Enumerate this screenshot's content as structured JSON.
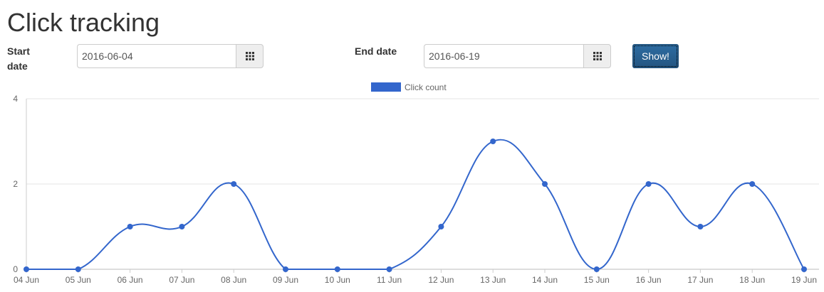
{
  "page": {
    "title": "Click tracking"
  },
  "filters": {
    "start_label": "Start date",
    "start_value": "2016-06-04",
    "end_label": "End date",
    "end_value": "2016-06-19",
    "calendar_icon": "calendar-grid-icon",
    "show_label": "Show!"
  },
  "colors": {
    "series": "#3366cc",
    "button": "#265a88",
    "grid": "#e6e6e6"
  },
  "chart_data": {
    "type": "line",
    "title": "",
    "xlabel": "",
    "ylabel": "",
    "categories": [
      "04 Jun",
      "05 Jun",
      "06 Jun",
      "07 Jun",
      "08 Jun",
      "09 Jun",
      "10 Jun",
      "11 Jun",
      "12 Jun",
      "13 Jun",
      "14 Jun",
      "15 Jun",
      "16 Jun",
      "17 Jun",
      "18 Jun",
      "19 Jun"
    ],
    "series": [
      {
        "name": "Click count",
        "values": [
          0,
          0,
          1,
          1,
          2,
          0,
          0,
          0,
          1,
          3,
          2,
          0,
          2,
          1,
          2,
          0
        ]
      }
    ],
    "ylim": [
      0,
      4
    ],
    "yticks": [
      0,
      2,
      4
    ],
    "grid": true,
    "legend": "top-center"
  }
}
